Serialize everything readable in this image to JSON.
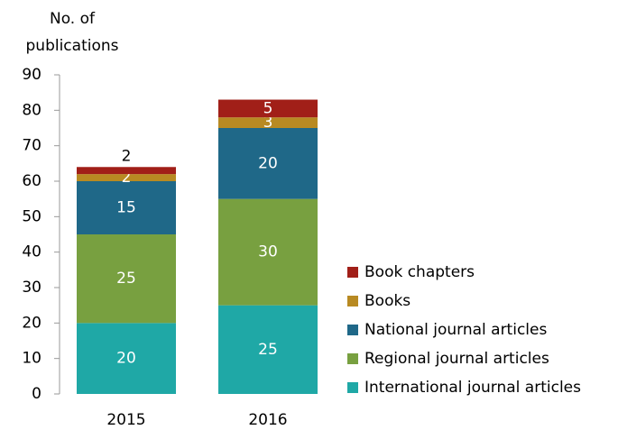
{
  "chart_data": {
    "type": "stacked_bar",
    "y_label": "No. of publications",
    "categories": [
      "2015",
      "2016"
    ],
    "series": [
      {
        "name": "International journal articles",
        "color": "#1fa8a6",
        "values": [
          20,
          25
        ]
      },
      {
        "name": "Regional journal articles",
        "color": "#78a040",
        "values": [
          25,
          30
        ]
      },
      {
        "name": "National journal articles",
        "color": "#1f6888",
        "values": [
          15,
          20
        ]
      },
      {
        "name": "Books",
        "color": "#b88a22",
        "values": [
          2,
          3
        ]
      },
      {
        "name": "Book chapters",
        "color": "#a11f18",
        "values": [
          2,
          5
        ]
      }
    ],
    "ylim": [
      0,
      90
    ],
    "yticks": [
      0,
      10,
      20,
      30,
      40,
      50,
      60,
      70,
      80,
      90
    ],
    "legend": "right"
  }
}
